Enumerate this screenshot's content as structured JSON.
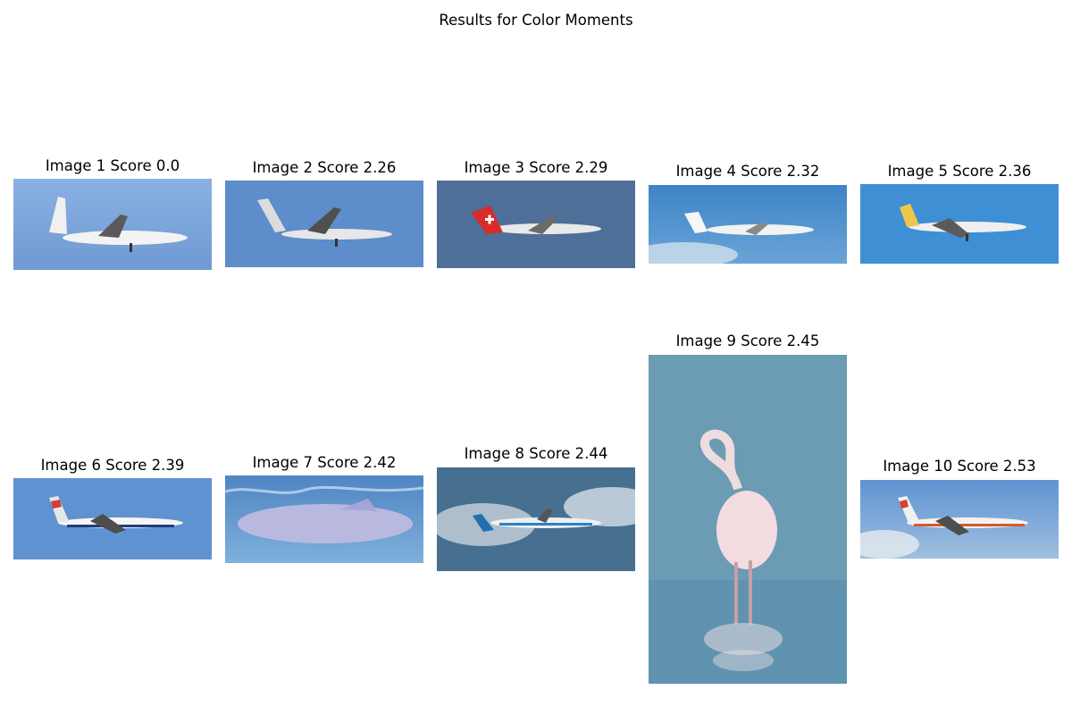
{
  "figure": {
    "title": "Results for Color Moments"
  },
  "results": [
    {
      "label": "Image 1 Score 0.0",
      "subject": "airplane",
      "tone": "#7fa8dc"
    },
    {
      "label": "Image 2 Score 2.26",
      "subject": "airplane",
      "tone": "#5d8cc8"
    },
    {
      "label": "Image 3 Score 2.29",
      "subject": "airplane",
      "tone": "#4d6f99"
    },
    {
      "label": "Image 4 Score 2.32",
      "subject": "airplane",
      "tone": "#4a8ccb"
    },
    {
      "label": "Image 5 Score 2.36",
      "subject": "airplane",
      "tone": "#3f8fd3"
    },
    {
      "label": "Image 6 Score 2.39",
      "subject": "airplane",
      "tone": "#5f92d1"
    },
    {
      "label": "Image 7 Score 2.42",
      "subject": "dolphin",
      "tone": "#5f8fc8"
    },
    {
      "label": "Image 8 Score 2.44",
      "subject": "airplane",
      "tone": "#45708e"
    },
    {
      "label": "Image 9 Score 2.45",
      "subject": "flamingo",
      "tone": "#6e9bb6"
    },
    {
      "label": "Image 10 Score 2.53",
      "subject": "airplane",
      "tone": "#6d9bd0"
    }
  ]
}
